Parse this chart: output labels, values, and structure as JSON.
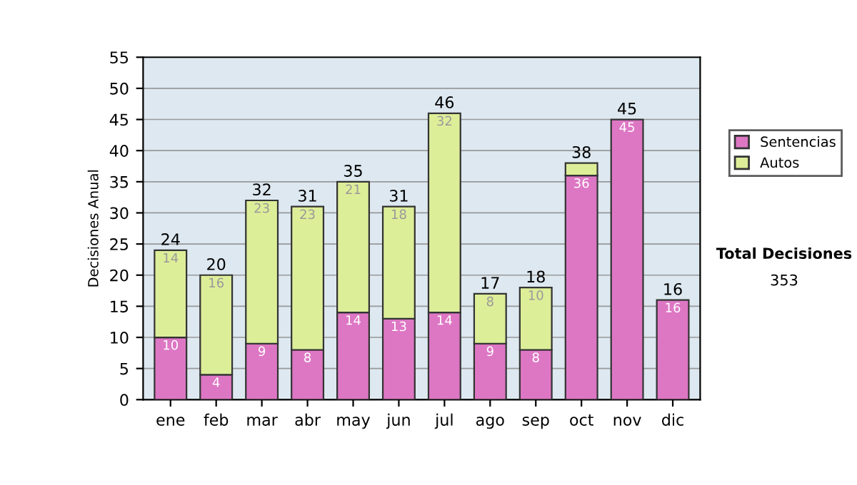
{
  "chart_data": {
    "type": "bar",
    "stacked": true,
    "ylabel": "Decisiones Anual",
    "categories": [
      "ene",
      "feb",
      "mar",
      "abr",
      "may",
      "jun",
      "jul",
      "ago",
      "sep",
      "oct",
      "nov",
      "dic"
    ],
    "series": [
      {
        "name": "Sentencias",
        "color": "#dd77c4",
        "values": [
          10,
          4,
          9,
          8,
          14,
          13,
          14,
          9,
          8,
          36,
          45,
          16
        ],
        "value_labels": [
          "10",
          "4",
          "9",
          "8",
          "14",
          "13",
          "14",
          "9",
          "8",
          "36",
          "45",
          "16"
        ]
      },
      {
        "name": "Autos",
        "color": "#ddee99",
        "values": [
          14,
          16,
          23,
          23,
          21,
          18,
          32,
          8,
          10,
          2,
          0,
          0
        ],
        "value_labels": [
          "14",
          "16",
          "23",
          "23",
          "21",
          "18",
          "32",
          "8",
          "10",
          null,
          null,
          null
        ]
      }
    ],
    "totals": [
      "24",
      "20",
      "32",
      "31",
      "35",
      "31",
      "46",
      "17",
      "18",
      "38",
      "45",
      "16"
    ],
    "ylim": [
      0,
      55
    ],
    "yticks": [
      0,
      5,
      10,
      15,
      20,
      25,
      30,
      35,
      40,
      45,
      50,
      55
    ],
    "grid": "y",
    "legend": "right",
    "annotations": [
      "Total Decisiones",
      "353"
    ]
  }
}
